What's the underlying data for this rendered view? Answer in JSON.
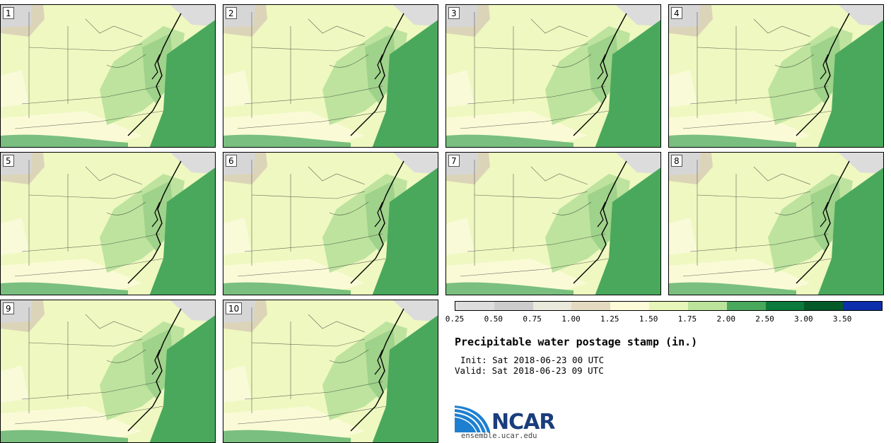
{
  "panels": [
    "1",
    "2",
    "3",
    "4",
    "5",
    "6",
    "7",
    "8",
    "9",
    "10"
  ],
  "legend": {
    "colors": [
      "#dddddd",
      "#cccccc",
      "#e9e9dc",
      "#e4dac0",
      "#fcfcd8",
      "#e6f5b8",
      "#bbe39c",
      "#48a85c",
      "#0c7a3b",
      "#055a2a",
      "#0c2fac"
    ],
    "ticks": [
      "0.25",
      "0.50",
      "0.75",
      "1.00",
      "1.25",
      "1.50",
      "1.75",
      "2.00",
      "2.50",
      "3.00",
      "3.50"
    ]
  },
  "title": "Precipitable water postage stamp (in.)",
  "init": "Init: Sat 2018-06-23 00 UTC",
  "valid": "Valid: Sat 2018-06-23 09 UTC",
  "logo": {
    "name": "NCAR",
    "url": "ensemble.ucar.edu"
  }
}
